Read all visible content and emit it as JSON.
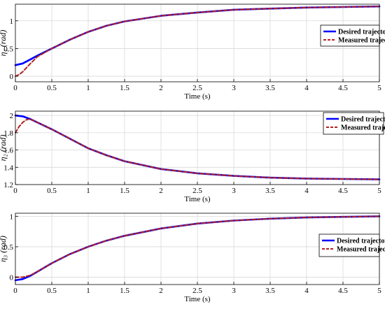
{
  "chart_data": [
    {
      "type": "line",
      "xlabel": "Time (s)",
      "ylabel": "η₁ (rad)",
      "xlim": [
        0,
        5
      ],
      "ylim": [
        -0.1,
        1.3
      ],
      "x_ticks": [
        0,
        0.5,
        1,
        1.5,
        2,
        2.5,
        3,
        3.5,
        4,
        4.5,
        5
      ],
      "x_tick_labels": [
        "0",
        "0.5",
        "1",
        "1.5",
        "2",
        "2.5",
        "3",
        "3.5",
        "4",
        "4.5",
        "5"
      ],
      "y_ticks": [
        0,
        0.5,
        1
      ],
      "y_tick_labels": [
        "0",
        "0.5",
        "1"
      ],
      "grid": true,
      "legend_position": "right",
      "series": [
        {
          "name": "Desired trajectory",
          "color": "#0000ff",
          "style": "solid",
          "x": [
            0,
            0.1,
            0.2,
            0.3,
            0.5,
            0.75,
            1,
            1.25,
            1.5,
            2,
            2.5,
            3,
            3.5,
            4,
            4.5,
            5
          ],
          "y": [
            0.2,
            0.23,
            0.3,
            0.37,
            0.5,
            0.66,
            0.8,
            0.91,
            0.99,
            1.09,
            1.15,
            1.2,
            1.22,
            1.24,
            1.25,
            1.26
          ]
        },
        {
          "name": "Measured trajectory",
          "color": "#b22222",
          "style": "dashed",
          "x": [
            0,
            0.05,
            0.1,
            0.2,
            0.3,
            0.5,
            0.75,
            1,
            1.25,
            1.5,
            2,
            2.5,
            3,
            3.5,
            4,
            4.5,
            5
          ],
          "y": [
            0.0,
            0.03,
            0.08,
            0.22,
            0.35,
            0.5,
            0.66,
            0.8,
            0.91,
            0.99,
            1.09,
            1.15,
            1.2,
            1.22,
            1.24,
            1.25,
            1.26
          ]
        }
      ]
    },
    {
      "type": "line",
      "xlabel": "Time (s)",
      "ylabel": "η₂ (rad)",
      "xlim": [
        0,
        5
      ],
      "ylim": [
        1.2,
        2.05
      ],
      "x_ticks": [
        0,
        0.5,
        1,
        1.5,
        2,
        2.5,
        3,
        3.5,
        4,
        4.5,
        5
      ],
      "x_tick_labels": [
        "0",
        "0.5",
        "1",
        "1.5",
        "2",
        "2.5",
        "3",
        "3.5",
        "4",
        "4.5",
        "5"
      ],
      "y_ticks": [
        1.2,
        1.4,
        1.6,
        1.8,
        2
      ],
      "y_tick_labels": [
        "1.2",
        "1.4",
        "1.6",
        "1.8",
        "2"
      ],
      "grid": true,
      "legend_position": "top-right",
      "series": [
        {
          "name": "Desired trajectory",
          "color": "#0000ff",
          "style": "solid",
          "x": [
            0,
            0.1,
            0.2,
            0.3,
            0.5,
            0.75,
            1,
            1.25,
            1.5,
            2,
            2.5,
            3,
            3.5,
            4,
            4.5,
            5
          ],
          "y": [
            2.0,
            1.99,
            1.96,
            1.92,
            1.84,
            1.73,
            1.62,
            1.54,
            1.47,
            1.38,
            1.33,
            1.3,
            1.28,
            1.27,
            1.265,
            1.26
          ]
        },
        {
          "name": "Measured trajectory",
          "color": "#b22222",
          "style": "dashed",
          "x": [
            0,
            0.05,
            0.1,
            0.15,
            0.2,
            0.3,
            0.5,
            0.75,
            1,
            1.25,
            1.5,
            2,
            2.5,
            3,
            3.5,
            4,
            4.5,
            5
          ],
          "y": [
            1.8,
            1.87,
            1.92,
            1.95,
            1.96,
            1.92,
            1.84,
            1.73,
            1.62,
            1.54,
            1.47,
            1.38,
            1.33,
            1.3,
            1.28,
            1.27,
            1.265,
            1.26
          ]
        }
      ]
    },
    {
      "type": "line",
      "xlabel": "Time (s)",
      "ylabel": "η₃ (rad)",
      "xlim": [
        0,
        5
      ],
      "ylim": [
        -0.12,
        1.05
      ],
      "x_ticks": [
        0,
        0.5,
        1,
        1.5,
        2,
        2.5,
        3,
        3.5,
        4,
        4.5,
        5
      ],
      "x_tick_labels": [
        "0",
        "0.5",
        "1",
        "1.5",
        "2",
        "2.5",
        "3",
        "3.5",
        "4",
        "4.5",
        "5"
      ],
      "y_ticks": [
        0,
        0.5,
        1
      ],
      "y_tick_labels": [
        "0",
        "0.5",
        "1"
      ],
      "grid": true,
      "legend_position": "right",
      "series": [
        {
          "name": "Desired trajectory",
          "color": "#0000ff",
          "style": "solid",
          "x": [
            0,
            0.1,
            0.2,
            0.3,
            0.5,
            0.75,
            1,
            1.25,
            1.5,
            2,
            2.5,
            3,
            3.5,
            4,
            4.5,
            5
          ],
          "y": [
            -0.05,
            -0.03,
            0.02,
            0.09,
            0.23,
            0.38,
            0.5,
            0.6,
            0.68,
            0.8,
            0.88,
            0.93,
            0.96,
            0.98,
            0.99,
            1.0
          ]
        },
        {
          "name": "Measured trajectory",
          "color": "#b22222",
          "style": "dashed",
          "x": [
            0,
            0.1,
            0.2,
            0.3,
            0.5,
            0.75,
            1,
            1.25,
            1.5,
            2,
            2.5,
            3,
            3.5,
            4,
            4.5,
            5
          ],
          "y": [
            0.0,
            0.0,
            0.03,
            0.09,
            0.23,
            0.38,
            0.5,
            0.6,
            0.68,
            0.8,
            0.88,
            0.93,
            0.96,
            0.98,
            0.99,
            1.0
          ]
        }
      ]
    }
  ]
}
